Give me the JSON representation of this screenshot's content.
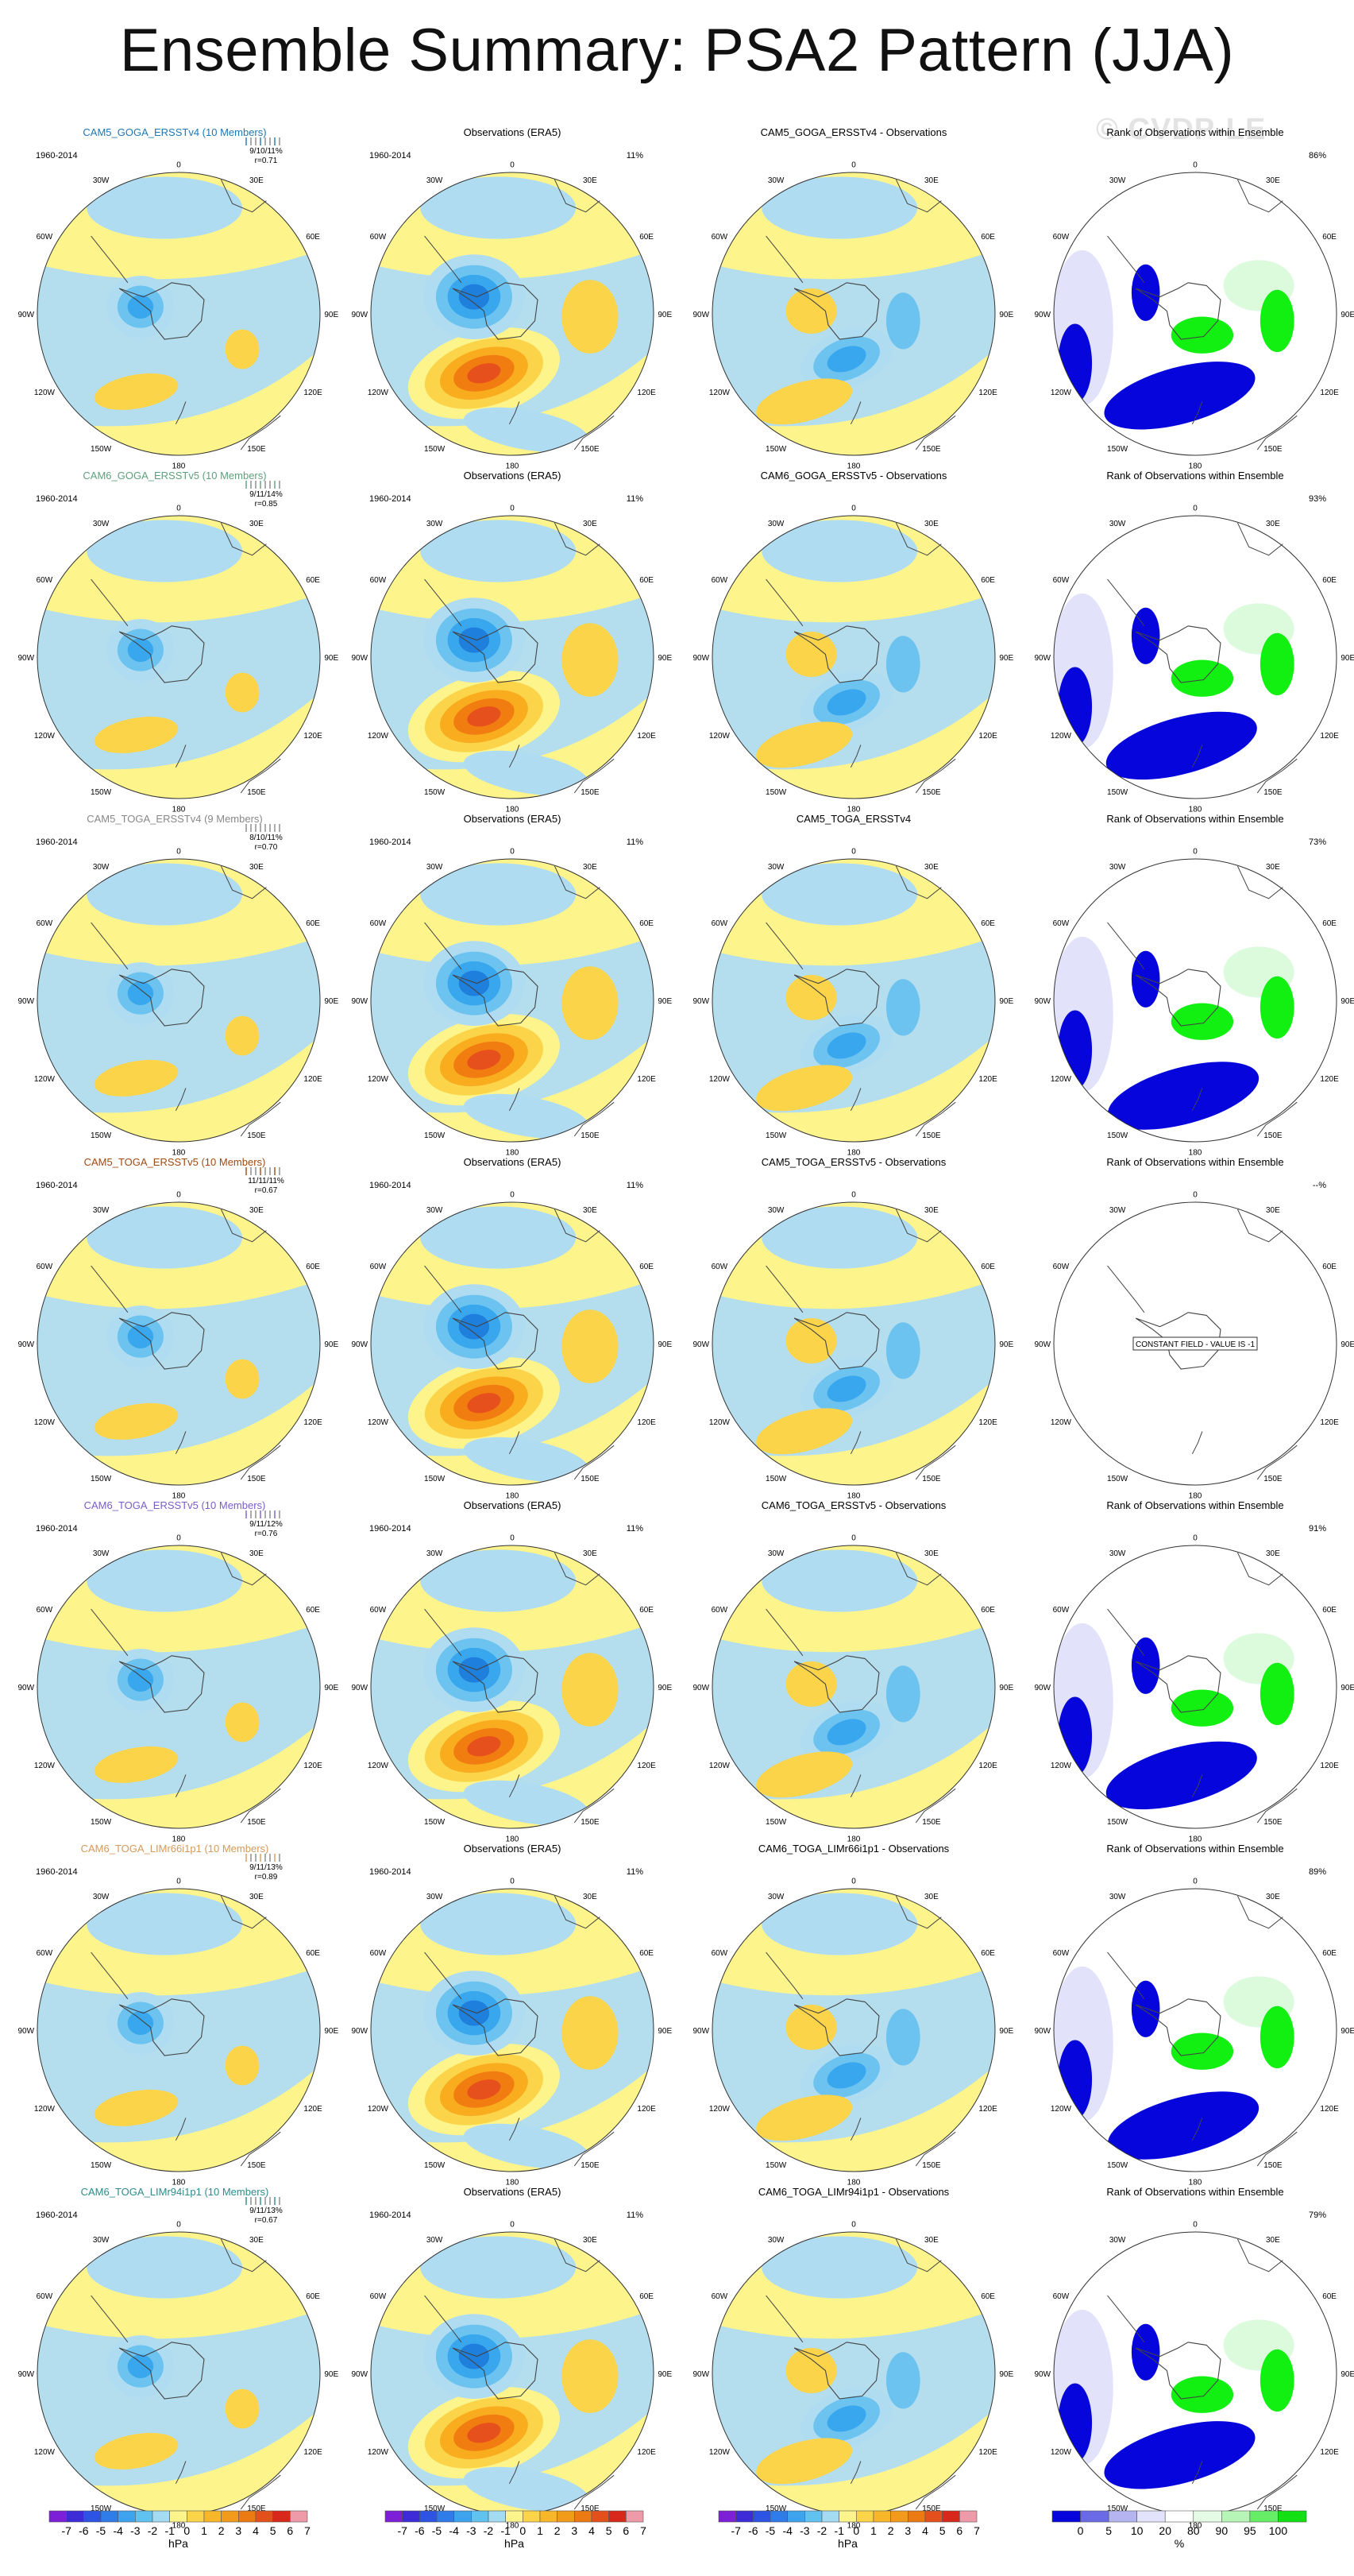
{
  "title": "Ensemble Summary: PSA2 Pattern (JJA)",
  "watermark": "© CVDP-LE",
  "longitude_labels": [
    "0",
    "30E",
    "60E",
    "90E",
    "120E",
    "150E",
    "180",
    "150W",
    "120W",
    "90W",
    "60W",
    "30W"
  ],
  "obs_label": "Observations (ERA5)",
  "rank_label": "Rank of Observations within Ensemble",
  "period": "1960-2014",
  "obs_pct": "11%",
  "constant_field_text": "CONSTANT FIELD - VALUE IS -1",
  "colors": {
    "neg4": "#1e7fdc",
    "neg3": "#38a7ee",
    "neg2": "#6cc3f0",
    "neg1": "#b0dcf2",
    "pos1": "#fdf48c",
    "pos2": "#fbd44a",
    "pos3": "#f8ac1e",
    "pos4": "#f17d10",
    "pos5": "#e6501c",
    "rank_blue": "#0505dc",
    "rank_lav": "#e2e2fa",
    "rank_green": "#12f012",
    "rank_lgreen": "#dcfadc",
    "model_colors": [
      "#1f77b4",
      "#5fa07c",
      "#888888",
      "#a04a12",
      "#7a5cc8",
      "#d49a5a",
      "#2e8b8b"
    ]
  },
  "rows": [
    {
      "model": "CAM5_GOGA_ERSSTv4 (10 Members)",
      "diff": "CAM5_GOGA_ERSSTv4 - Observations",
      "stat": "9/10/11%",
      "r": "r=0.71",
      "rank_pct": "86%"
    },
    {
      "model": "CAM6_GOGA_ERSSTv5 (10 Members)",
      "diff": "CAM6_GOGA_ERSSTv5 - Observations",
      "stat": "9/11/14%",
      "r": "r=0.85",
      "rank_pct": "93%"
    },
    {
      "model": "CAM5_TOGA_ERSSTv4 (9 Members)",
      "diff": "CAM5_TOGA_ERSSTv4",
      "stat": "8/10/11%",
      "r": "r=0.70",
      "rank_pct": "73%"
    },
    {
      "model": "CAM5_TOGA_ERSSTv5 (10 Members)",
      "diff": "CAM5_TOGA_ERSSTv5 - Observations",
      "stat": "11/11/11%",
      "r": "r=0.67",
      "rank_pct": "--%"
    },
    {
      "model": "CAM6_TOGA_ERSSTv5 (10 Members)",
      "diff": "CAM6_TOGA_ERSSTv5 - Observations",
      "stat": "9/11/12%",
      "r": "r=0.76",
      "rank_pct": "91%"
    },
    {
      "model": "CAM6_TOGA_LIMr66i1p1 (10 Members)",
      "diff": "CAM6_TOGA_LIMr66i1p1 - Observations",
      "stat": "9/11/13%",
      "r": "r=0.89",
      "rank_pct": "89%"
    },
    {
      "model": "CAM6_TOGA_LIMr94i1p1 (10 Members)",
      "diff": "CAM6_TOGA_LIMr94i1p1 - Observations",
      "stat": "9/11/13%",
      "r": "r=0.67",
      "rank_pct": "79%"
    }
  ],
  "colorbar_hpa": {
    "labels": [
      "-7",
      "-6",
      "-5",
      "-4",
      "-3",
      "-2",
      "-1",
      "0",
      "1",
      "2",
      "3",
      "4",
      "5",
      "6",
      "7"
    ],
    "unit": "hPa",
    "colors": [
      "#7d1fd6",
      "#3d2bd8",
      "#2d53e2",
      "#2f7be8",
      "#3da3ee",
      "#5fc2ef",
      "#a3dbf2",
      "#fdf48c",
      "#fbd44a",
      "#f8b728",
      "#f29a1a",
      "#ec7a12",
      "#e4501c",
      "#d8281c",
      "#ee9aa8"
    ]
  },
  "colorbar_pct": {
    "labels": [
      "0",
      "5",
      "10",
      "20",
      "80",
      "90",
      "95",
      "100"
    ],
    "unit": "%",
    "colors": [
      "#0505dc",
      "#6a6ae6",
      "#b4b4f0",
      "#e2e2fa",
      "#ffffff",
      "#e6fbe6",
      "#b6f5b6",
      "#66ee66",
      "#12e012"
    ]
  }
}
